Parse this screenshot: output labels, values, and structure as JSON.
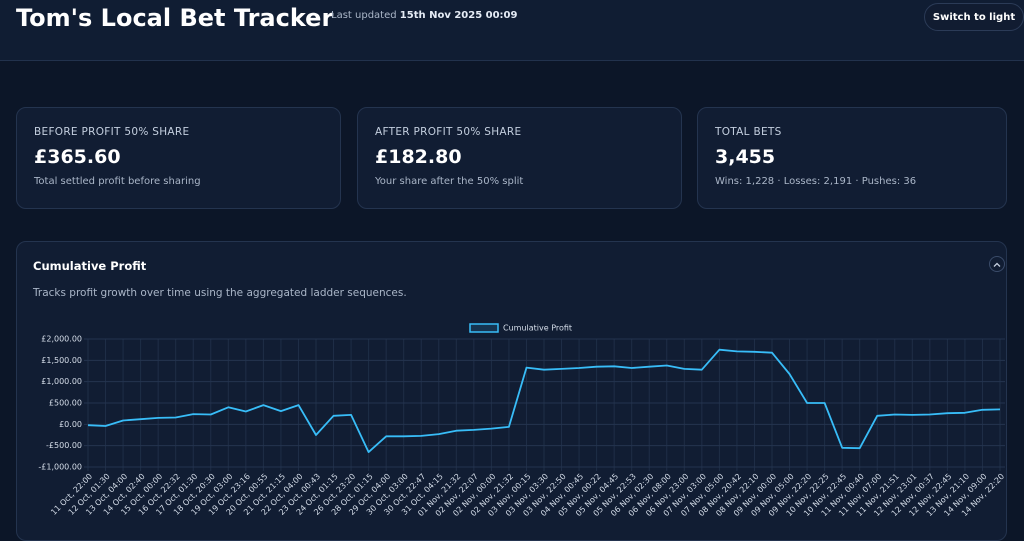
{
  "header": {
    "title": "Tom's Local Bet Tracker",
    "updated_label": "Last updated",
    "updated_value": "15th Nov 2025 00:09",
    "button": "Switch to light"
  },
  "cards": [
    {
      "label": "BEFORE PROFIT 50% SHARE",
      "value": "£365.60",
      "note": "Total settled profit before sharing"
    },
    {
      "label": "AFTER PROFIT 50% SHARE",
      "value": "£182.80",
      "note": "Your share after the 50% split"
    },
    {
      "label": "TOTAL BETS",
      "value": "3,455",
      "note": "Wins: 1,228 · Losses: 2,191 · Pushes: 36"
    }
  ],
  "panel": {
    "title": "Cumulative Profit",
    "description": "Tracks profit growth over time using the aggregated ladder sequences."
  },
  "chart_data": {
    "type": "line",
    "categories": [
      "11 Oct, 22:00",
      "12 Oct, 01:30",
      "13 Oct, 04:00",
      "14 Oct, 02:40",
      "15 Oct, 00:00",
      "16 Oct, 22:32",
      "17 Oct, 01:30",
      "18 Oct, 20:30",
      "19 Oct, 03:00",
      "19 Oct, 23:16",
      "20 Oct, 00:55",
      "21 Oct, 21:15",
      "22 Oct, 04:00",
      "23 Oct, 00:43",
      "24 Oct, 01:15",
      "26 Oct, 23:20",
      "28 Oct, 01:15",
      "29 Oct, 04:00",
      "30 Oct, 03:00",
      "30 Oct, 22:47",
      "31 Oct, 04:15",
      "01 Nov, 21:32",
      "02 Nov, 22:07",
      "02 Nov, 00:00",
      "02 Nov, 21:32",
      "03 Nov, 00:15",
      "03 Nov, 03:30",
      "03 Nov, 22:50",
      "04 Nov, 00:45",
      "05 Nov, 00:22",
      "05 Nov, 04:45",
      "05 Nov, 22:53",
      "06 Nov, 02:30",
      "06 Nov, 08:00",
      "06 Nov, 23:00",
      "07 Nov, 03:00",
      "07 Nov, 05:00",
      "08 Nov, 20:42",
      "08 Nov, 22:10",
      "09 Nov, 00:00",
      "09 Nov, 05:00",
      "09 Nov, 22:20",
      "10 Nov, 22:25",
      "10 Nov, 22:45",
      "11 Nov, 00:40",
      "11 Nov, 07:00",
      "11 Nov, 21:51",
      "12 Nov, 23:01",
      "12 Nov, 00:37",
      "12 Nov, 22:45",
      "13 Nov, 21:10",
      "14 Nov, 09:00",
      "14 Nov, 22:20"
    ],
    "series": [
      {
        "name": "Cumulative Profit",
        "color": "#38bdf8",
        "values": [
          -20,
          -40,
          90,
          120,
          150,
          160,
          240,
          230,
          400,
          300,
          450,
          310,
          450,
          -250,
          200,
          220,
          -650,
          -280,
          -280,
          -270,
          -230,
          -150,
          -130,
          -100,
          -60,
          1330,
          1280,
          1300,
          1320,
          1350,
          1360,
          1320,
          1350,
          1380,
          1300,
          1280,
          1750,
          1710,
          1700,
          1680,
          1180,
          500,
          500,
          -550,
          -560,
          200,
          230,
          220,
          230,
          260,
          270,
          340,
          350
        ]
      }
    ],
    "ylim": [
      -1000,
      2000
    ],
    "yticks": [
      {
        "value": -1000,
        "label": "-£1,000.00"
      },
      {
        "value": -500,
        "label": "-£500.00"
      },
      {
        "value": 0,
        "label": "£0.00"
      },
      {
        "value": 500,
        "label": "£500.00"
      },
      {
        "value": 1000,
        "label": "£1,000.00"
      },
      {
        "value": 1500,
        "label": "£1,500.00"
      },
      {
        "value": 2000,
        "label": "£2,000.00"
      }
    ],
    "grid": true,
    "legend": "top"
  }
}
